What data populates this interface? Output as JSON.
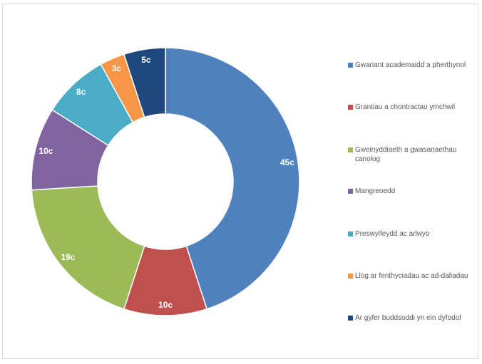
{
  "chart_data": {
    "type": "pie",
    "variant": "donut",
    "categories": [
      "Gwariant academaidd a pherthynol",
      "Grantiau a chontractau ymchwil",
      "Gweinyddiaeth a gwasanaethau canolog",
      "Mangreoedd",
      "Preswylfeydd ac arlwyo",
      "Llog ar fenthyciadau ac ad-daliadau",
      "Ar gyfer buddsoddi yn ein dyfodol"
    ],
    "values": [
      45,
      10,
      19,
      10,
      8,
      3,
      5
    ],
    "data_labels": [
      "45c",
      "10c",
      "19c",
      "10c",
      "8c",
      "3c",
      "5c"
    ],
    "colors": [
      "#4f81bd",
      "#c0504d",
      "#9bbb59",
      "#8064a2",
      "#4bacc6",
      "#f79646",
      "#1f497d"
    ],
    "legend_position": "right"
  }
}
